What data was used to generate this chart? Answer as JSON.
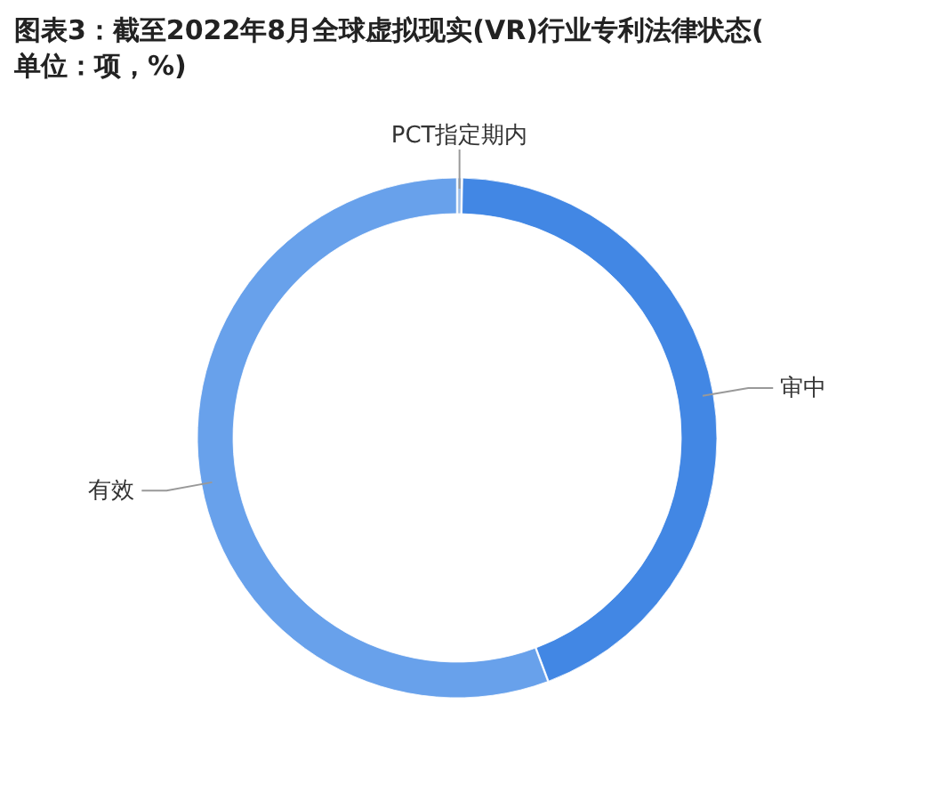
{
  "chart_data": {
    "type": "donut",
    "title": "图表3：截至2022年8月全球虚拟现实(VR)行业专利法律状态(单位：项，%)",
    "categories": [
      "PCT指定期内",
      "审中",
      "有效"
    ],
    "values": [
      0.3,
      44,
      55.7
    ],
    "colors": [
      "#9dbde6",
      "#4287e4",
      "#68a1eb"
    ]
  }
}
